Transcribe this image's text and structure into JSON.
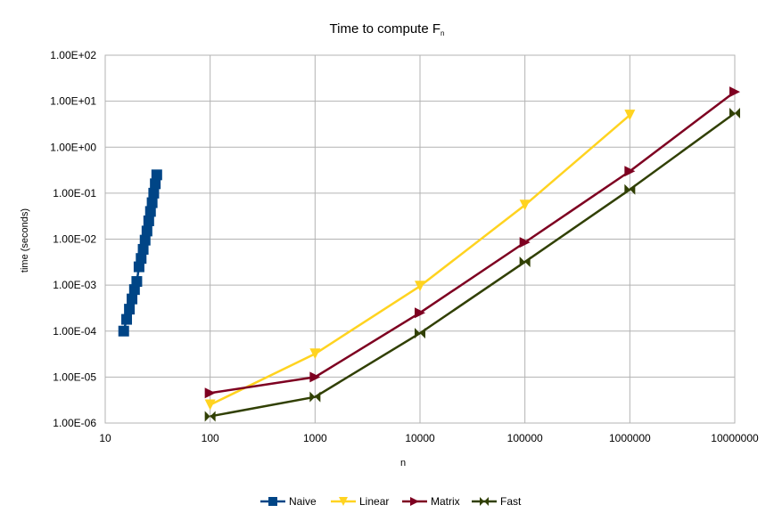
{
  "chart_data": {
    "type": "line",
    "title": "Time to compute F",
    "title_subscript": "n",
    "xlabel": "n",
    "ylabel": "time (seconds)",
    "x_scale": "log",
    "y_scale": "log",
    "xlim": [
      10,
      10000000
    ],
    "ylim": [
      1e-06,
      100
    ],
    "grid": true,
    "legend_position": "bottom",
    "x_tick_labels": [
      "10",
      "100",
      "1000",
      "10000",
      "100000",
      "1000000",
      "10000000"
    ],
    "y_tick_labels": [
      "1.00E-06",
      "1.00E-05",
      "1.00E-04",
      "1.00E-03",
      "1.00E-02",
      "1.00E-01",
      "1.00E+00",
      "1.00E+01",
      "1.00E+02"
    ],
    "series": [
      {
        "name": "Naive",
        "color": "#004586",
        "marker": "square",
        "x": [
          15,
          16,
          17,
          18,
          19,
          20,
          21,
          22,
          23,
          24,
          25,
          26,
          27,
          28,
          29,
          30,
          31
        ],
        "y": [
          0.0001,
          0.00018,
          0.0003,
          0.0005,
          0.0008,
          0.0012,
          0.0025,
          0.0038,
          0.006,
          0.0095,
          0.015,
          0.025,
          0.04,
          0.062,
          0.1,
          0.16,
          0.25
        ]
      },
      {
        "name": "Linear",
        "color": "#ffd320",
        "marker": "triangle-down",
        "x": [
          100,
          1000,
          10000,
          100000,
          1000000
        ],
        "y": [
          2.5e-06,
          3.2e-05,
          0.00095,
          0.055,
          5
        ]
      },
      {
        "name": "Matrix",
        "color": "#7e0021",
        "marker": "triangle-right",
        "x": [
          100,
          1000,
          10000,
          100000,
          1000000,
          10000000
        ],
        "y": [
          4.5e-06,
          1e-05,
          0.00025,
          0.0085,
          0.3,
          16
        ]
      },
      {
        "name": "Fast",
        "color": "#314004",
        "marker": "bowtie",
        "x": [
          100,
          1000,
          10000,
          100000,
          1000000,
          10000000
        ],
        "y": [
          1.4e-06,
          3.7e-06,
          9e-05,
          0.0032,
          0.12,
          5.5
        ]
      }
    ]
  }
}
